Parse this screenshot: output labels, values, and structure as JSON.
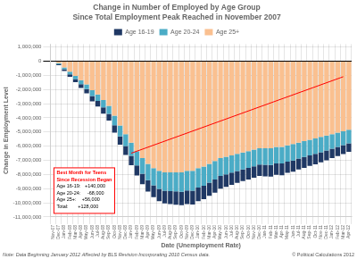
{
  "chart_data": {
    "type": "bar",
    "title": [
      "Change in Number of Employed by Age Group",
      "Since Total Employment Peak Reached in November 2007"
    ],
    "x_label": "Date (Unemployment Rate)",
    "y_label": "Change in Employment Level",
    "note": "Note: Data Beginning January 2012 Affected by BLS Revision Incorporating 2010 Census data.",
    "copyright": "© Political Calculations 2012",
    "stacked": true,
    "grid": true,
    "legend": "top",
    "ylim": [
      -11000000,
      1200000
    ],
    "yticks": [
      {
        "value": 1000000,
        "label": "1,000,000"
      },
      0,
      {
        "value": -1000000,
        "label": "-1,000,000"
      },
      {
        "value": -2000000,
        "label": "-2,000,000"
      },
      {
        "value": -3000000,
        "label": "-3,000,000"
      },
      {
        "value": -4000000,
        "label": "-4,000,000"
      },
      {
        "value": -5000000,
        "label": "-5,000,000"
      },
      {
        "value": -6000000,
        "label": "-6,000,000"
      },
      {
        "value": -7000000,
        "label": "-7,000,000"
      },
      {
        "value": -8000000,
        "label": "-8,000,000"
      },
      {
        "value": -9000000,
        "label": "-9,000,000"
      },
      {
        "value": -10000000,
        "label": "-10,000,000"
      },
      {
        "value": -11000000,
        "label": "-11,000,000"
      }
    ],
    "categories": [
      "Nov-07",
      "Dec-07",
      "Jan-08",
      "Feb-08",
      "Mar-08",
      "Apr-08",
      "May-08",
      "Jun-08",
      "Jul-08",
      "Aug-08",
      "Sep-08",
      "Oct-08",
      "Nov-08",
      "Dec-08",
      "Jan-09",
      "Feb-09",
      "Mar-09",
      "Apr-09",
      "May-09",
      "Jun-09",
      "Jul-09",
      "Aug-09",
      "Sep-09",
      "Oct-09",
      "Nov-09",
      "Dec-09",
      "Jan-10",
      "Feb-10",
      "Mar-10",
      "Apr-10",
      "May-10",
      "Jun-10",
      "Jul-10",
      "Aug-10",
      "Sep-10",
      "Oct-10",
      "Nov-10",
      "Dec-10",
      "Jan-11",
      "Feb-11",
      "Mar-11",
      "Apr-11",
      "May-11",
      "Jun-11",
      "Jul-11",
      "Aug-11",
      "Sep-11",
      "Oct-11",
      "Nov-11",
      "Dec-11",
      "Jan-12",
      "Feb-12",
      "Mar-12",
      "Apr-12"
    ],
    "series": [
      {
        "name": "Age 25+",
        "color": "#FAC090",
        "values": [
          0,
          -150000,
          -450000,
          -750000,
          -1050000,
          -1350000,
          -1650000,
          -2050000,
          -2350000,
          -2750000,
          -3150000,
          -3850000,
          -4550000,
          -5150000,
          -5750000,
          -6350000,
          -6850000,
          -7250000,
          -7550000,
          -7750000,
          -7850000,
          -7850000,
          -7850000,
          -7850000,
          -7750000,
          -7750000,
          -7550000,
          -7450000,
          -7250000,
          -7050000,
          -6850000,
          -6750000,
          -6650000,
          -6550000,
          -6450000,
          -6350000,
          -6250000,
          -6150000,
          -6150000,
          -6150000,
          -6050000,
          -6050000,
          -5950000,
          -5850000,
          -5750000,
          -5650000,
          -5550000,
          -5450000,
          -5350000,
          -5250000,
          -5150000,
          -5050000,
          -4950000,
          -4850000
        ]
      },
      {
        "name": "Age 20-24",
        "color": "#4BACC6",
        "values": [
          0,
          -70000,
          -120000,
          -180000,
          -220000,
          -280000,
          -330000,
          -420000,
          -460000,
          -520000,
          -580000,
          -670000,
          -760000,
          -840000,
          -930000,
          -1020000,
          -1090000,
          -1160000,
          -1210000,
          -1270000,
          -1290000,
          -1320000,
          -1350000,
          -1370000,
          -1380000,
          -1400000,
          -1370000,
          -1350000,
          -1320000,
          -1300000,
          -1260000,
          -1250000,
          -1220000,
          -1210000,
          -1190000,
          -1180000,
          -1170000,
          -1150000,
          -1170000,
          -1180000,
          -1170000,
          -1180000,
          -1150000,
          -1160000,
          -1130000,
          -1120000,
          -1110000,
          -1100000,
          -1080000,
          -1060000,
          -1030000,
          -1000000,
          -980000,
          -950000
        ]
      },
      {
        "name": "Age 16-19",
        "color": "#1F3864",
        "values": [
          0,
          -60000,
          -130000,
          -180000,
          -220000,
          -260000,
          -300000,
          -370000,
          -390000,
          -430000,
          -470000,
          -530000,
          -590000,
          -630000,
          -670000,
          -710000,
          -750000,
          -800000,
          -840000,
          -870000,
          -900000,
          -920000,
          -940000,
          -950000,
          -960000,
          -970000,
          -960000,
          -950000,
          -940000,
          -930000,
          -890000,
          -880000,
          -860000,
          -840000,
          -830000,
          -820000,
          -810000,
          -800000,
          -810000,
          -820000,
          -810000,
          -820000,
          -790000,
          -800000,
          -770000,
          -760000,
          -740000,
          -730000,
          -710000,
          -690000,
          -670000,
          -650000,
          -630000,
          -610000
        ]
      }
    ],
    "annotation_title": [
      "Best Month for Teens",
      "Since Recession Began"
    ],
    "annotation": [
      "Age 16-19:   +140,000",
      "Age 20-24:     -68,000",
      "Age 25+:    +56,000",
      "Total:       +128,000"
    ],
    "annotation_line": {
      "x": [
        "Jan-09",
        "Mar-12"
      ],
      "y": [
        -6500000,
        -1100000
      ],
      "color": "red"
    }
  }
}
